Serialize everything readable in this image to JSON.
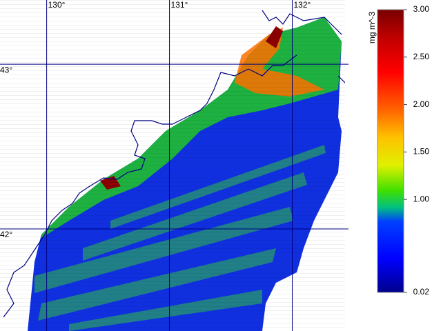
{
  "map": {
    "lonlim": [
      129.62,
      132.43
    ],
    "latlim": [
      41.38,
      43.39
    ],
    "longitudes": [
      {
        "value": 130,
        "label": "130°"
      },
      {
        "value": 131,
        "label": "131°"
      },
      {
        "value": 132,
        "label": "132°"
      }
    ],
    "latitudes": [
      {
        "value": 43,
        "label": "43°"
      },
      {
        "value": 42,
        "label": "42°"
      }
    ],
    "colorbar": {
      "label": "mg m^-3",
      "range": [
        0.02,
        3
      ],
      "ticks": [
        {
          "value": 3,
          "label": "3.00"
        },
        {
          "value": 2.5,
          "label": "2.50"
        },
        {
          "value": 2,
          "label": "2.00"
        },
        {
          "value": 1.5,
          "label": "1.50"
        },
        {
          "value": 1,
          "label": "1.00"
        },
        {
          "value": 0.02,
          "label": "0.02"
        }
      ]
    }
  }
}
